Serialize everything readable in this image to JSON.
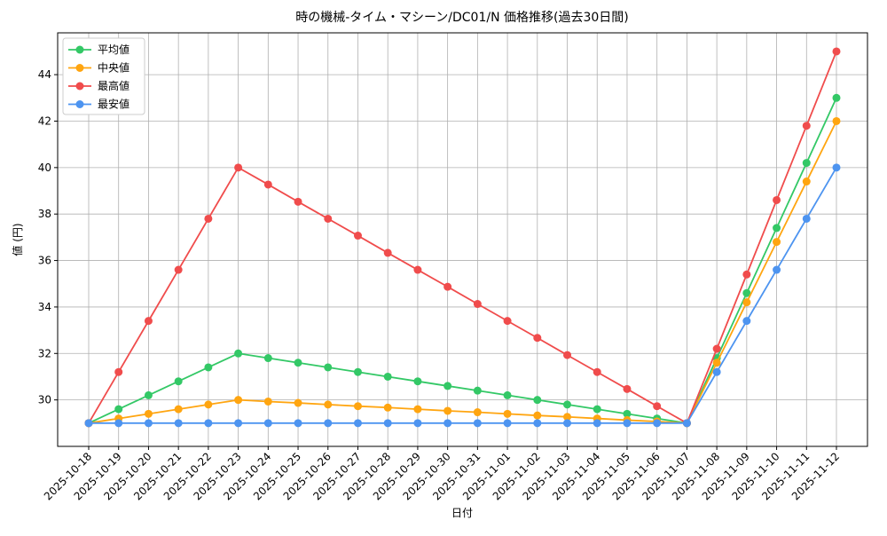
{
  "chart_data": {
    "type": "line",
    "title": "時の機械-タイム・マシーン/DC01/N 価格推移(過去30日間)",
    "x_label": "日付",
    "y_label": "値 (円)",
    "categories": [
      "2025-10-18",
      "2025-10-19",
      "2025-10-20",
      "2025-10-21",
      "2025-10-22",
      "2025-10-23",
      "2025-10-24",
      "2025-10-25",
      "2025-10-26",
      "2025-10-27",
      "2025-10-28",
      "2025-10-29",
      "2025-10-30",
      "2025-10-31",
      "2025-11-01",
      "2025-11-02",
      "2025-11-03",
      "2025-11-04",
      "2025-11-05",
      "2025-11-06",
      "2025-11-07",
      "2025-11-08",
      "2025-11-09",
      "2025-11-10",
      "2025-11-11",
      "2025-11-12"
    ],
    "series": [
      {
        "name": "平均値",
        "color": "#33c866",
        "values": [
          29,
          29.6,
          30.2,
          30.8,
          31.4,
          32.0,
          31.8,
          31.6,
          31.4,
          31.2,
          31.0,
          30.8,
          30.6,
          30.4,
          30.2,
          30.0,
          29.8,
          29.6,
          29.4,
          29.2,
          29.0,
          31.8,
          34.6,
          37.4,
          40.2,
          43.0
        ]
      },
      {
        "name": "中央値",
        "color": "#ffa510",
        "values": [
          29,
          29.2,
          29.4,
          29.6,
          29.8,
          30.0,
          29.93,
          29.87,
          29.8,
          29.73,
          29.67,
          29.6,
          29.53,
          29.47,
          29.4,
          29.33,
          29.27,
          29.2,
          29.13,
          29.07,
          29.0,
          31.6,
          34.2,
          36.8,
          39.4,
          42.0
        ]
      },
      {
        "name": "最高値",
        "color": "#f04c4c",
        "values": [
          29,
          31.2,
          33.4,
          35.6,
          37.8,
          40.0,
          39.27,
          38.53,
          37.8,
          37.07,
          36.33,
          35.6,
          34.87,
          34.13,
          33.4,
          32.67,
          31.93,
          31.2,
          30.47,
          29.73,
          29.0,
          32.2,
          35.4,
          38.6,
          41.8,
          45.0
        ]
      },
      {
        "name": "最安値",
        "color": "#4d94f0",
        "values": [
          29,
          29,
          29,
          29,
          29,
          29,
          29,
          29,
          29,
          29,
          29,
          29,
          29,
          29,
          29,
          29,
          29,
          29,
          29,
          29,
          29,
          31.2,
          33.4,
          35.6,
          37.8,
          40.0
        ]
      }
    ],
    "ylim": [
      28.0,
      45.8
    ],
    "yticks": [
      30,
      32,
      34,
      36,
      38,
      40,
      42,
      44
    ],
    "grid": true,
    "legend": "upper-left"
  }
}
